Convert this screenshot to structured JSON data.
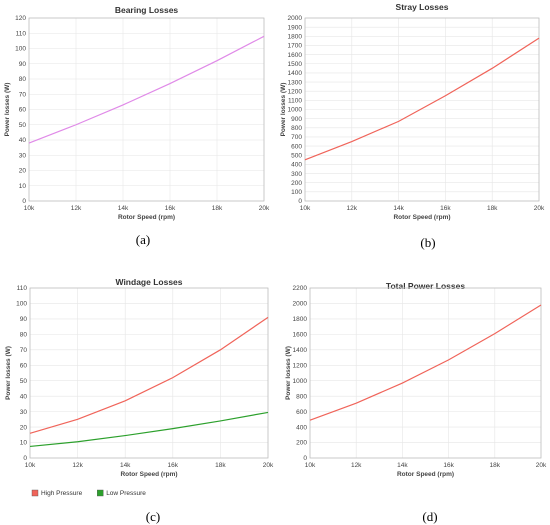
{
  "chart_data": [
    {
      "id": "a",
      "type": "line",
      "panel_label": "(a)",
      "title": "Bearing Losses",
      "xlabel": "Rotor Speed (rpm)",
      "ylabel": "Power losses (W)",
      "x": [
        10000,
        12000,
        14000,
        16000,
        18000,
        20000
      ],
      "xticks": [
        "10k",
        "12k",
        "14k",
        "16k",
        "18k",
        "20k"
      ],
      "xlim": [
        10000,
        20000
      ],
      "ylim": [
        0,
        120
      ],
      "yticks": [
        0,
        10,
        20,
        30,
        40,
        50,
        60,
        70,
        80,
        90,
        100,
        110,
        120
      ],
      "grid": true,
      "series": [
        {
          "color": "#e08ae8",
          "values": [
            38,
            50,
            63,
            77,
            92,
            108
          ]
        }
      ]
    },
    {
      "id": "b",
      "type": "line",
      "panel_label": "(b)",
      "title": "Stray Losses",
      "xlabel": "Rotor Speed (rpm)",
      "ylabel": "Power losses (W)",
      "x": [
        10000,
        12000,
        14000,
        16000,
        18000,
        20000
      ],
      "xticks": [
        "10k",
        "12k",
        "14k",
        "16k",
        "18k",
        "20k"
      ],
      "xlim": [
        10000,
        20000
      ],
      "ylim": [
        0,
        2000
      ],
      "yticks": [
        0,
        100,
        200,
        300,
        400,
        500,
        600,
        700,
        800,
        900,
        1000,
        1100,
        1200,
        1300,
        1400,
        1500,
        1600,
        1700,
        1800,
        1900,
        2000
      ],
      "grid": true,
      "series": [
        {
          "color": "#f0645a",
          "values": [
            450,
            650,
            870,
            1150,
            1450,
            1780
          ]
        }
      ]
    },
    {
      "id": "c",
      "type": "line",
      "panel_label": "(c)",
      "title": "Windage  Losses",
      "xlabel": "Rotor Speed (rpm)",
      "ylabel": "Power losses (W)",
      "x": [
        10000,
        12000,
        14000,
        16000,
        18000,
        20000
      ],
      "xticks": [
        "10k",
        "12k",
        "14k",
        "16k",
        "18k",
        "20k"
      ],
      "xlim": [
        10000,
        20000
      ],
      "ylim": [
        0,
        110
      ],
      "yticks": [
        0,
        10,
        20,
        30,
        40,
        50,
        60,
        70,
        80,
        90,
        100,
        110
      ],
      "grid": true,
      "legend": "bottom-left",
      "series": [
        {
          "name": "High Pressure",
          "color": "#f0645a",
          "values": [
            16,
            25,
            37,
            52,
            70,
            91
          ]
        },
        {
          "name": "Low Pressure",
          "color": "#2ca02c",
          "values": [
            7.5,
            10.5,
            14.5,
            19,
            24,
            29.5
          ]
        }
      ]
    },
    {
      "id": "d",
      "type": "line",
      "panel_label": "(d)",
      "title": "Total Power  Losses",
      "xlabel": "Rotor Speed (rpm)",
      "ylabel": "Power losses (W)",
      "x": [
        10000,
        12000,
        14000,
        16000,
        18000,
        20000
      ],
      "xticks": [
        "10k",
        "12k",
        "14k",
        "16k",
        "18k",
        "20k"
      ],
      "xlim": [
        10000,
        20000
      ],
      "ylim": [
        0,
        2200
      ],
      "yticks": [
        0,
        200,
        400,
        600,
        800,
        1000,
        1200,
        1400,
        1600,
        1800,
        2000,
        2200
      ],
      "grid": true,
      "series": [
        {
          "color": "#f0645a",
          "values": [
            490,
            710,
            970,
            1270,
            1610,
            1980
          ]
        }
      ]
    }
  ]
}
